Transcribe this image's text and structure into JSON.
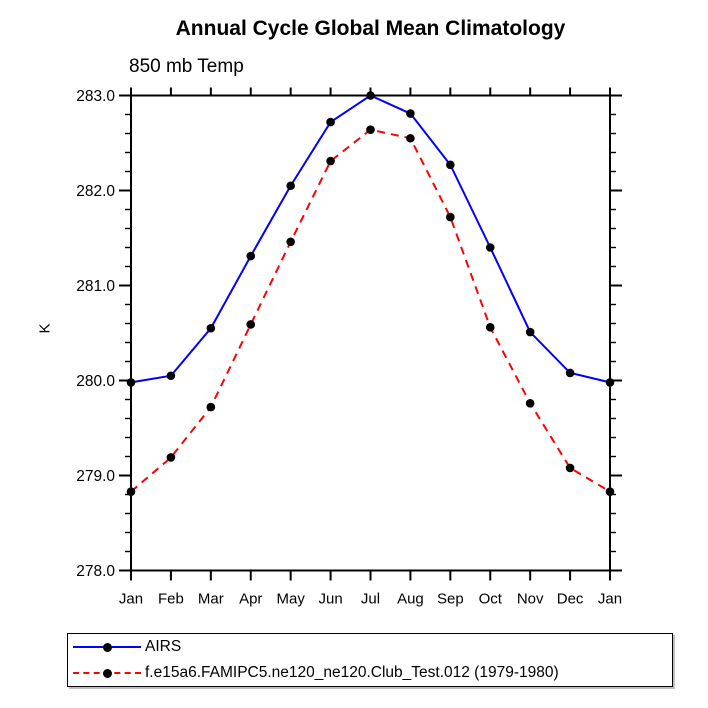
{
  "header": {
    "title": "Annual Cycle Global Mean Climatology",
    "subtitle": "850 mb Temp"
  },
  "chart_data": {
    "type": "line",
    "title": "Annual Cycle Global Mean Climatology",
    "subtitle": "850 mb Temp",
    "xlabel": "",
    "ylabel": "K",
    "categories": [
      "Jan",
      "Feb",
      "Mar",
      "Apr",
      "May",
      "Jun",
      "Jul",
      "Aug",
      "Sep",
      "Oct",
      "Nov",
      "Dec",
      "Jan"
    ],
    "ylim": [
      278.0,
      283.0
    ],
    "y_major_step": 1.0,
    "y_minor_step": 0.2,
    "y_tick_labels": [
      "278.0",
      "279.0",
      "280.0",
      "281.0",
      "282.0",
      "283.0"
    ],
    "grid": false,
    "frame_color": "#000000",
    "marker_color": "#000000",
    "legend_position": "bottom-left-box",
    "series": [
      {
        "name": "AIRS",
        "color": "#0000ff",
        "style": "solid",
        "marker": "filled-circle",
        "values": [
          279.98,
          280.05,
          280.55,
          281.31,
          282.05,
          282.72,
          283.0,
          282.81,
          282.27,
          281.4,
          280.51,
          280.08,
          279.98
        ]
      },
      {
        "name": "f.e15a6.FAMIPC5.ne120_ne120.Club_Test.012 (1979-1980)",
        "color": "#ff0000",
        "style": "dashed",
        "marker": "filled-circle",
        "values": [
          278.83,
          279.19,
          279.72,
          280.59,
          281.46,
          282.31,
          282.64,
          282.55,
          281.72,
          280.56,
          279.76,
          279.08,
          278.83
        ]
      }
    ]
  }
}
